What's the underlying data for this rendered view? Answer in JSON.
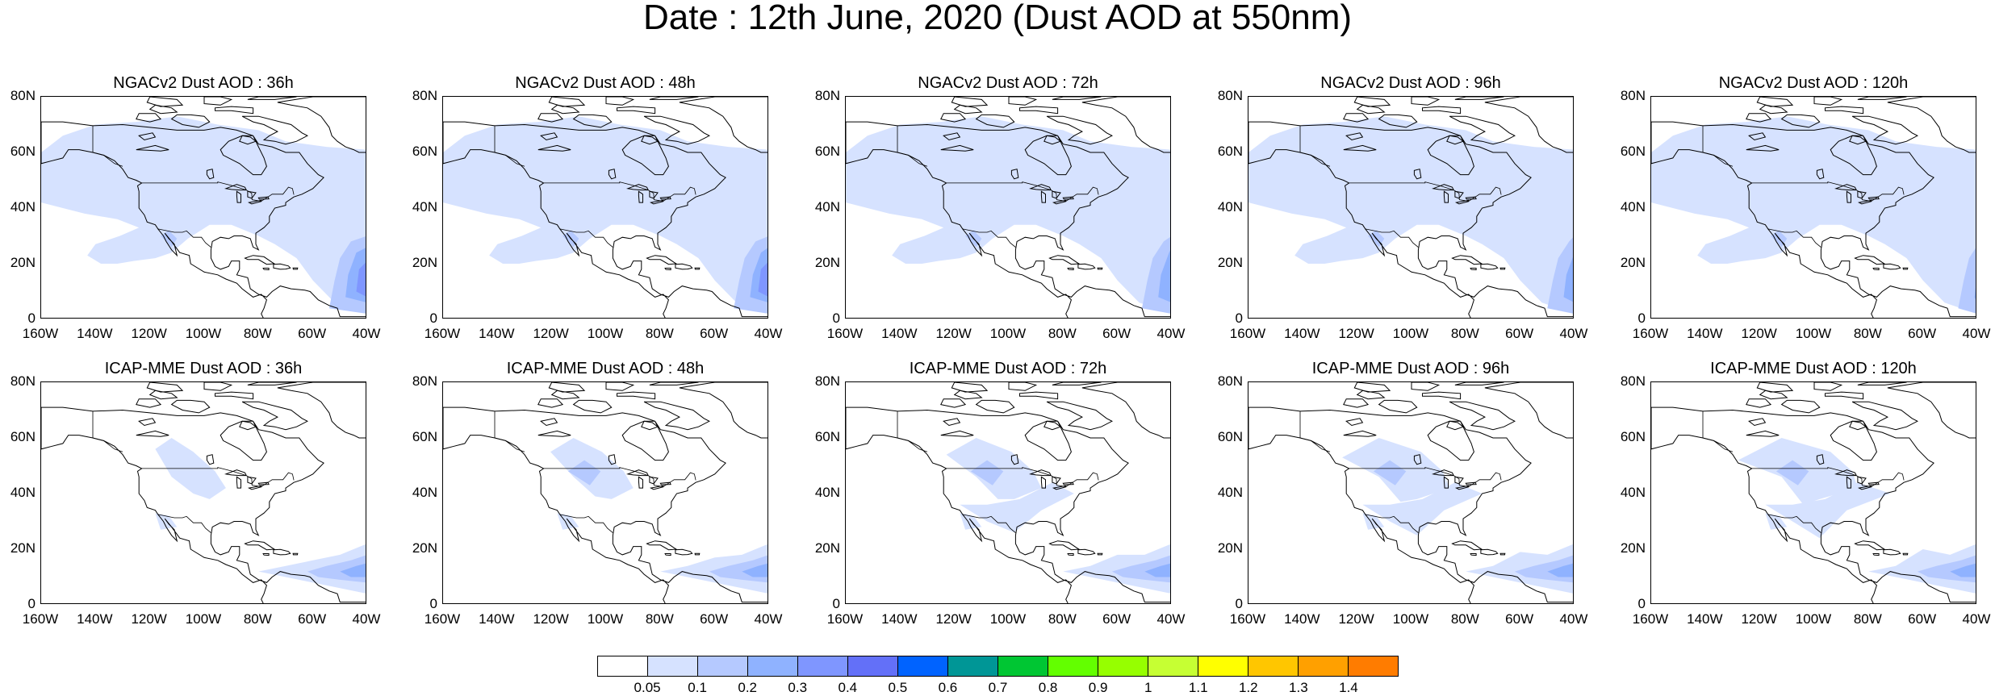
{
  "title": "Date : 12th June, 2020 (Dust AOD at 550nm)",
  "lat_ticks": [
    "80N",
    "60N",
    "40N",
    "20N",
    "0"
  ],
  "lon_ticks": [
    "160W",
    "140W",
    "120W",
    "100W",
    "80W",
    "60W",
    "40W"
  ],
  "rows": [
    {
      "model": "NGACv2",
      "panels": [
        {
          "title": "NGACv2 Dust AOD : 36h",
          "lead_hours": 36
        },
        {
          "title": "NGACv2 Dust AOD : 48h",
          "lead_hours": 48
        },
        {
          "title": "NGACv2 Dust AOD : 72h",
          "lead_hours": 72
        },
        {
          "title": "NGACv2 Dust AOD : 96h",
          "lead_hours": 96
        },
        {
          "title": "NGACv2 Dust AOD : 120h",
          "lead_hours": 120
        }
      ]
    },
    {
      "model": "ICAP-MME",
      "panels": [
        {
          "title": "ICAP-MME Dust AOD : 36h",
          "lead_hours": 36
        },
        {
          "title": "ICAP-MME Dust AOD : 48h",
          "lead_hours": 48
        },
        {
          "title": "ICAP-MME Dust AOD : 72h",
          "lead_hours": 72
        },
        {
          "title": "ICAP-MME Dust AOD : 96h",
          "lead_hours": 96
        },
        {
          "title": "ICAP-MME Dust AOD : 120h",
          "lead_hours": 120
        }
      ]
    }
  ],
  "colorbar": {
    "labels": [
      "0.05",
      "0.1",
      "0.2",
      "0.3",
      "0.4",
      "0.5",
      "0.6",
      "0.7",
      "0.8",
      "0.9",
      "1",
      "1.1",
      "1.2",
      "1.3",
      "1.4"
    ],
    "colors": [
      "#ffffff",
      "#d6e2ff",
      "#b5c9ff",
      "#8fb2ff",
      "#7f96ff",
      "#6370f8",
      "#0063ff",
      "#009696",
      "#00c633",
      "#63ff00",
      "#96ff00",
      "#c6ff33",
      "#ffff00",
      "#ffc600",
      "#ffa000",
      "#ff7c00",
      "#ff1900"
    ]
  }
}
